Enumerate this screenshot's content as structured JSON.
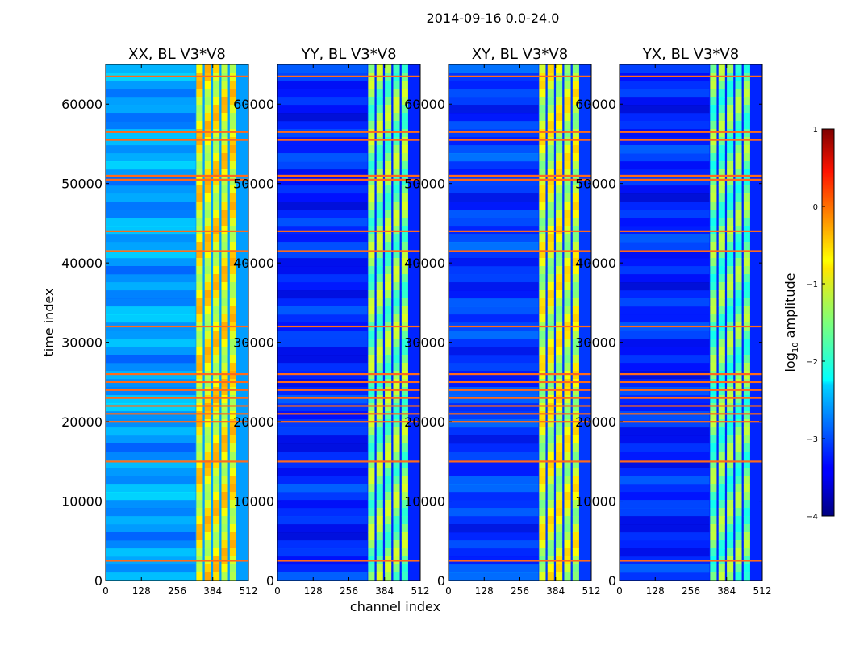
{
  "figure": {
    "suptitle": "2014-09-16 0.0-24.0"
  },
  "chart_data": {
    "type": "heatmap",
    "suptitle": "2014-09-16 0.0-24.0",
    "xlabel": "channel index",
    "ylabel": "time index",
    "xlim": [
      0,
      512
    ],
    "ylim": [
      0,
      65000
    ],
    "xticks": [
      0,
      128,
      256,
      384,
      512
    ],
    "yticks": [
      0,
      10000,
      20000,
      30000,
      40000,
      50000,
      60000
    ],
    "panels": [
      {
        "title": "XX, BL V3*V8",
        "bright_band_channels": [
          325,
          475
        ],
        "base_level": -2.6,
        "band_level": -0.9
      },
      {
        "title": "YY, BL V3*V8",
        "bright_band_channels": [
          325,
          475
        ],
        "base_level": -3.2,
        "band_level": -1.5
      },
      {
        "title": "XY, BL V3*V8",
        "bright_band_channels": [
          325,
          475
        ],
        "base_level": -3.1,
        "band_level": -1.1
      },
      {
        "title": "YX, BL V3*V8",
        "bright_band_channels": [
          325,
          475
        ],
        "base_level": -3.2,
        "band_level": -1.6
      }
    ],
    "flagged_time_rows": [
      2500,
      15000,
      20000,
      21000,
      22000,
      23000,
      24000,
      25000,
      26000,
      32000,
      41500,
      44000,
      50500,
      51000,
      55500,
      56500,
      63500
    ],
    "colorbar": {
      "label": "log10 amplitude",
      "label_base": "log",
      "label_sub": "10",
      "label_rest": " amplitude",
      "range": [
        -4,
        1
      ],
      "ticks": [
        1,
        0,
        -1,
        -2,
        -3,
        -4
      ],
      "tick_labels": [
        "1",
        "0",
        "−1",
        "−2",
        "−3",
        "−4"
      ],
      "colormap": "jet"
    }
  }
}
